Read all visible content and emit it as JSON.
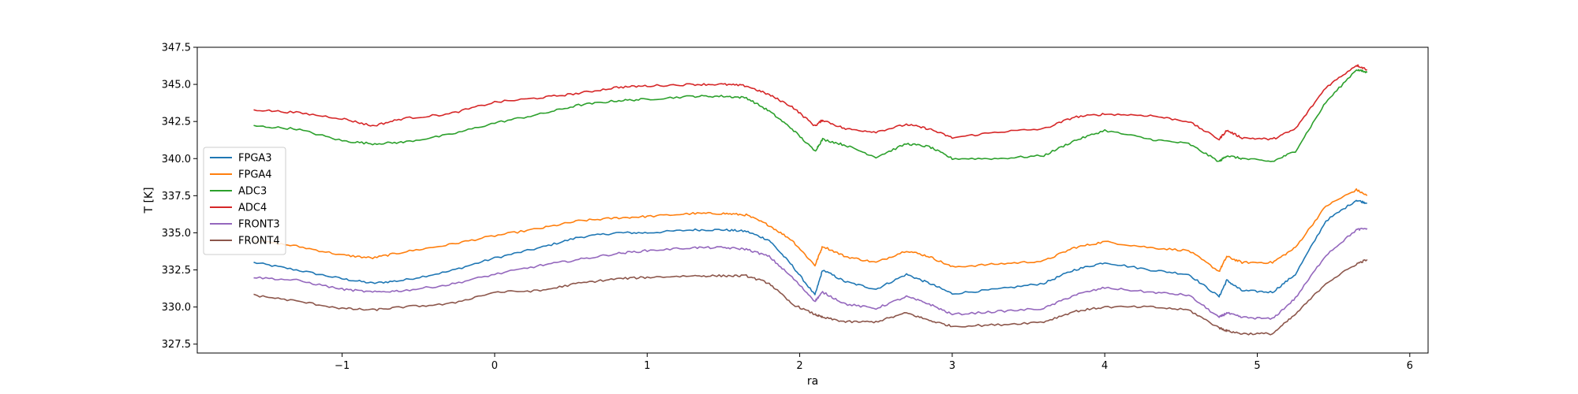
{
  "chart_data": {
    "type": "line",
    "title": "",
    "xlabel": "ra",
    "ylabel": "T [K]",
    "xlim": [
      -1.95,
      6.12
    ],
    "ylim": [
      326.9,
      347.5
    ],
    "xticks": [
      -1,
      0,
      1,
      2,
      3,
      4,
      5,
      6
    ],
    "xtick_labels": [
      "−1",
      "0",
      "1",
      "2",
      "3",
      "4",
      "5",
      "6"
    ],
    "yticks": [
      327.5,
      330.0,
      332.5,
      335.0,
      337.5,
      340.0,
      342.5,
      345.0,
      347.5
    ],
    "ytick_labels": [
      "327.5",
      "330.0",
      "332.5",
      "335.0",
      "337.5",
      "340.0",
      "342.5",
      "345.0",
      "347.5"
    ],
    "grid": false,
    "legend_position": "center-left",
    "series": [
      {
        "name": "FPGA3",
        "color": "#1f77b4",
        "x": [
          -1.58,
          -1.3,
          -1.0,
          -0.8,
          -0.6,
          -0.3,
          0.0,
          0.3,
          0.55,
          0.8,
          1.0,
          1.3,
          1.5,
          1.65,
          1.8,
          1.95,
          2.1,
          2.15,
          2.3,
          2.5,
          2.7,
          2.85,
          3.0,
          3.3,
          3.6,
          3.8,
          4.0,
          4.3,
          4.55,
          4.75,
          4.8,
          4.9,
          5.1,
          5.25,
          5.45,
          5.65,
          5.72
        ],
        "y": [
          333.0,
          332.5,
          331.9,
          331.6,
          331.8,
          332.4,
          333.3,
          334.0,
          334.7,
          335.0,
          335.0,
          335.2,
          335.2,
          335.1,
          334.5,
          332.8,
          330.8,
          332.5,
          331.7,
          331.2,
          332.2,
          331.6,
          330.9,
          331.2,
          331.6,
          332.5,
          333.0,
          332.5,
          332.2,
          330.7,
          331.8,
          331.1,
          331.0,
          332.2,
          335.8,
          337.2,
          337.0
        ]
      },
      {
        "name": "FPGA4",
        "color": "#ff7f0e",
        "x": [
          -1.58,
          -1.3,
          -1.0,
          -0.8,
          -0.6,
          -0.3,
          0.0,
          0.3,
          0.55,
          0.8,
          1.0,
          1.3,
          1.5,
          1.65,
          1.8,
          1.95,
          2.1,
          2.15,
          2.3,
          2.5,
          2.7,
          2.85,
          3.0,
          3.3,
          3.6,
          3.8,
          4.0,
          4.3,
          4.55,
          4.75,
          4.8,
          4.9,
          5.1,
          5.25,
          5.45,
          5.65,
          5.72
        ],
        "y": [
          334.5,
          334.1,
          333.5,
          333.3,
          333.7,
          334.2,
          334.8,
          335.3,
          335.8,
          336.0,
          336.1,
          336.3,
          336.3,
          336.2,
          335.5,
          334.5,
          332.8,
          334.1,
          333.4,
          333.0,
          333.8,
          333.4,
          332.7,
          332.9,
          333.1,
          334.0,
          334.4,
          334.0,
          333.8,
          332.4,
          333.4,
          333.0,
          333.0,
          334.0,
          336.8,
          337.9,
          337.5
        ]
      },
      {
        "name": "ADC3",
        "color": "#2ca02c",
        "x": [
          -1.58,
          -1.3,
          -1.0,
          -0.8,
          -0.6,
          -0.3,
          0.0,
          0.3,
          0.55,
          0.8,
          1.0,
          1.3,
          1.5,
          1.65,
          1.8,
          1.95,
          2.1,
          2.15,
          2.3,
          2.5,
          2.7,
          2.85,
          3.0,
          3.3,
          3.6,
          3.8,
          4.0,
          4.3,
          4.55,
          4.75,
          4.8,
          4.9,
          5.1,
          5.25,
          5.45,
          5.65,
          5.72
        ],
        "y": [
          342.2,
          342.0,
          341.2,
          341.0,
          341.1,
          341.6,
          342.4,
          343.0,
          343.6,
          343.9,
          344.0,
          344.2,
          344.2,
          344.1,
          343.2,
          342.0,
          340.5,
          341.3,
          340.9,
          340.1,
          341.0,
          340.8,
          340.0,
          340.0,
          340.2,
          341.2,
          341.9,
          341.3,
          341.0,
          339.8,
          340.2,
          340.0,
          339.8,
          340.5,
          343.8,
          346.0,
          345.8
        ]
      },
      {
        "name": "ADC4",
        "color": "#d62728",
        "x": [
          -1.58,
          -1.3,
          -1.0,
          -0.8,
          -0.6,
          -0.3,
          0.0,
          0.3,
          0.55,
          0.8,
          1.0,
          1.3,
          1.5,
          1.65,
          1.8,
          1.95,
          2.1,
          2.15,
          2.3,
          2.5,
          2.7,
          2.85,
          3.0,
          3.3,
          3.6,
          3.8,
          4.0,
          4.3,
          4.55,
          4.75,
          4.8,
          4.9,
          5.1,
          5.25,
          5.45,
          5.65,
          5.72
        ],
        "y": [
          343.3,
          343.1,
          342.7,
          342.2,
          342.7,
          343.0,
          343.8,
          344.1,
          344.4,
          344.8,
          344.9,
          345.0,
          345.0,
          344.9,
          344.3,
          343.5,
          342.2,
          342.6,
          342.0,
          341.8,
          342.3,
          342.0,
          341.4,
          341.8,
          342.0,
          342.8,
          343.0,
          342.9,
          342.5,
          341.3,
          341.9,
          341.4,
          341.3,
          342.0,
          344.8,
          346.3,
          346.0
        ]
      },
      {
        "name": "FRONT3",
        "color": "#9467bd",
        "x": [
          -1.58,
          -1.3,
          -1.0,
          -0.8,
          -0.6,
          -0.3,
          0.0,
          0.3,
          0.55,
          0.8,
          1.0,
          1.3,
          1.5,
          1.65,
          1.8,
          1.95,
          2.1,
          2.15,
          2.3,
          2.5,
          2.7,
          2.85,
          3.0,
          3.3,
          3.6,
          3.8,
          4.0,
          4.3,
          4.55,
          4.75,
          4.8,
          4.9,
          5.1,
          5.25,
          5.45,
          5.65,
          5.72
        ],
        "y": [
          332.0,
          331.8,
          331.2,
          331.0,
          331.1,
          331.5,
          332.2,
          332.8,
          333.2,
          333.6,
          333.8,
          334.0,
          334.0,
          333.9,
          333.4,
          332.0,
          330.4,
          331.0,
          330.2,
          329.9,
          330.7,
          330.2,
          329.5,
          329.7,
          329.9,
          330.8,
          331.3,
          331.0,
          330.8,
          329.3,
          329.6,
          329.3,
          329.2,
          330.6,
          333.5,
          335.2,
          335.3
        ]
      },
      {
        "name": "FRONT4",
        "color": "#8c564b",
        "x": [
          -1.58,
          -1.3,
          -1.0,
          -0.8,
          -0.6,
          -0.3,
          0.0,
          0.3,
          0.55,
          0.8,
          1.0,
          1.3,
          1.5,
          1.65,
          1.8,
          1.95,
          2.1,
          2.15,
          2.3,
          2.5,
          2.7,
          2.85,
          3.0,
          3.3,
          3.6,
          3.8,
          4.0,
          4.3,
          4.55,
          4.75,
          4.8,
          4.9,
          5.1,
          5.25,
          5.45,
          5.65,
          5.72
        ],
        "y": [
          330.8,
          330.4,
          329.9,
          329.8,
          330.0,
          330.2,
          331.0,
          331.1,
          331.6,
          331.9,
          332.0,
          332.1,
          332.1,
          332.1,
          331.6,
          330.2,
          329.5,
          329.3,
          329.0,
          329.0,
          329.6,
          329.1,
          328.7,
          328.8,
          329.0,
          329.7,
          330.0,
          330.0,
          329.8,
          328.6,
          328.4,
          328.2,
          328.2,
          329.5,
          331.6,
          332.9,
          333.2
        ]
      }
    ]
  }
}
